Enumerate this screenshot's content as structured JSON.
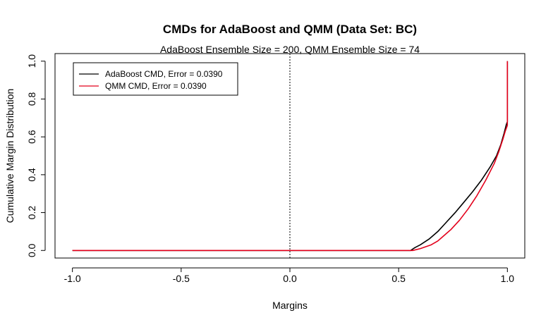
{
  "chart_data": {
    "type": "line",
    "title": "CMDs for AdaBoost and QMM (Data Set: BC)",
    "subtitle": "AdaBoost Ensemble Size = 200, QMM Ensemble Size = 74",
    "xlabel": "Margins",
    "ylabel": "Cumulative Margin Distribution",
    "xlim": [
      -1.08,
      1.08
    ],
    "ylim": [
      -0.04,
      1.04
    ],
    "x_ticks": [
      -1.0,
      -0.5,
      0.0,
      0.5,
      1.0
    ],
    "x_tick_labels": [
      "-1.0",
      "-0.5",
      "0.0",
      "0.5",
      "1.0"
    ],
    "y_ticks": [
      0.0,
      0.2,
      0.4,
      0.6,
      0.8,
      1.0
    ],
    "y_tick_labels": [
      "0.0",
      "0.2",
      "0.4",
      "0.6",
      "0.8",
      "1.0"
    ],
    "grid": false,
    "legend_position": "top-left",
    "reference_line": {
      "x": 0.0,
      "style": "dotted"
    },
    "series": [
      {
        "name": "AdaBoost CMD, Error = 0.0390",
        "color": "#000000",
        "x": [
          -1.0,
          0.555,
          0.575,
          0.6,
          0.64,
          0.68,
          0.72,
          0.76,
          0.8,
          0.84,
          0.88,
          0.92,
          0.95,
          0.97,
          0.985,
          0.995,
          1.0,
          1.0
        ],
        "y": [
          0.0,
          0.0,
          0.015,
          0.03,
          0.06,
          0.1,
          0.15,
          0.2,
          0.255,
          0.31,
          0.37,
          0.44,
          0.5,
          0.56,
          0.62,
          0.665,
          0.68,
          1.0
        ]
      },
      {
        "name": "QMM CMD, Error = 0.0390",
        "color": "#e3001b",
        "x": [
          -1.0,
          0.565,
          0.6,
          0.65,
          0.68,
          0.7,
          0.74,
          0.78,
          0.82,
          0.86,
          0.9,
          0.94,
          0.96,
          0.98,
          0.99,
          1.0,
          1.0
        ],
        "y": [
          0.0,
          0.0,
          0.01,
          0.03,
          0.05,
          0.07,
          0.11,
          0.16,
          0.22,
          0.29,
          0.37,
          0.46,
          0.52,
          0.59,
          0.63,
          0.66,
          1.0
        ]
      }
    ]
  }
}
